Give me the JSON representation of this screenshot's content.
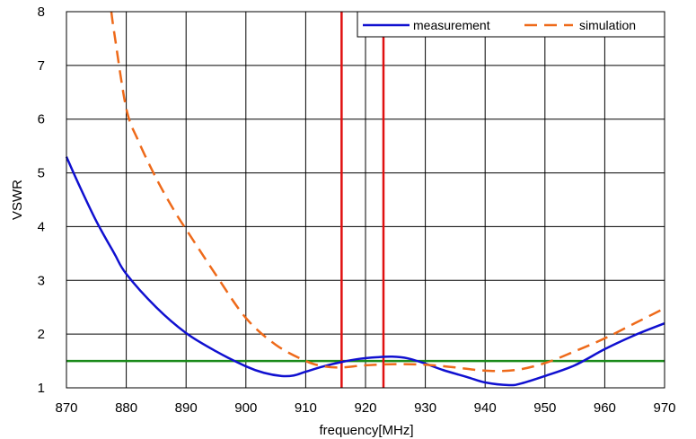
{
  "chart_data": {
    "type": "line",
    "title": "",
    "xlabel": "frequency[MHz]",
    "ylabel": "VSWR",
    "xlim": [
      870,
      970
    ],
    "ylim": [
      1,
      8
    ],
    "x_ticks": [
      "870",
      "880",
      "890",
      "900",
      "910",
      "920",
      "930",
      "940",
      "950",
      "960",
      "970"
    ],
    "y_ticks": [
      "1",
      "2",
      "3",
      "4",
      "5",
      "6",
      "7",
      "8"
    ],
    "grid": true,
    "legend_position": "top-right",
    "series": [
      {
        "name": "measurement",
        "color": "#1010d0",
        "style": "solid",
        "x": [
          870,
          872,
          875,
          878,
          880,
          885,
          890,
          895,
          900,
          903,
          906,
          908,
          910,
          913,
          916,
          919,
          922,
          924.5,
          927,
          930,
          933,
          937,
          940,
          944,
          946,
          950,
          955,
          960,
          965,
          970
        ],
        "y": [
          5.3,
          4.8,
          4.1,
          3.5,
          3.12,
          2.5,
          2.02,
          1.68,
          1.4,
          1.28,
          1.22,
          1.23,
          1.3,
          1.4,
          1.48,
          1.54,
          1.57,
          1.58,
          1.55,
          1.45,
          1.33,
          1.2,
          1.1,
          1.05,
          1.08,
          1.22,
          1.42,
          1.72,
          1.98,
          2.2
        ]
      },
      {
        "name": "simulation",
        "color": "#ee6a1a",
        "style": "dashed",
        "x": [
          877.5,
          878,
          880,
          882,
          885,
          888,
          890,
          895,
          900,
          905,
          910,
          913,
          916,
          920,
          925,
          930,
          935,
          940,
          945,
          950,
          955,
          960,
          965,
          970
        ],
        "y": [
          8.0,
          7.6,
          6.2,
          5.6,
          4.9,
          4.3,
          3.95,
          3.1,
          2.3,
          1.8,
          1.5,
          1.4,
          1.38,
          1.42,
          1.44,
          1.43,
          1.38,
          1.32,
          1.33,
          1.46,
          1.68,
          1.92,
          2.2,
          2.48
        ]
      }
    ],
    "reference_lines": [
      {
        "orientation": "horizontal",
        "value": 1.5,
        "color": "#1a8a1a"
      },
      {
        "orientation": "vertical",
        "value": 916,
        "color": "#e01010"
      },
      {
        "orientation": "vertical",
        "value": 923,
        "color": "#e01010"
      }
    ]
  }
}
